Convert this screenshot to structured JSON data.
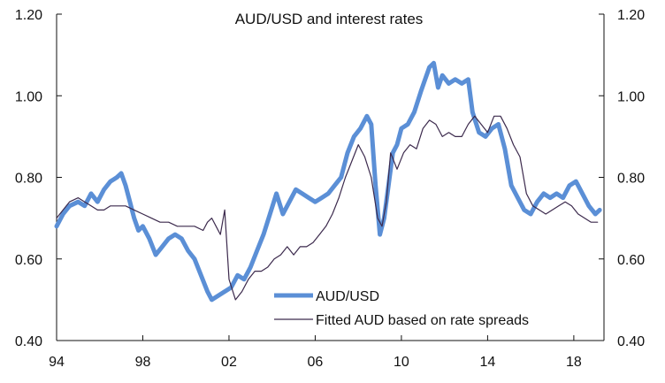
{
  "chart_data": {
    "type": "line",
    "title": "AUD/USD and interest rates",
    "xlabel": "",
    "ylabel": "",
    "xlim": [
      1994,
      2019.4
    ],
    "ylim": [
      0.4,
      1.2
    ],
    "x_ticks": [
      1994,
      1998,
      2002,
      2006,
      2010,
      2014,
      2018
    ],
    "x_tick_labels": [
      "94",
      "98",
      "02",
      "06",
      "10",
      "14",
      "18"
    ],
    "y_ticks": [
      0.4,
      0.6,
      0.8,
      1.0,
      1.2
    ],
    "y_tick_labels": [
      "0.40",
      "0.60",
      "0.80",
      "1.00",
      "1.20"
    ],
    "grid": false,
    "legend_position": "bottom-right",
    "colors": {
      "aud": "#5b8fd6",
      "fitted": "#3c2a4d",
      "axis": "#111111"
    },
    "series": [
      {
        "name": "AUD/USD",
        "x": [
          1994.0,
          1994.3,
          1994.6,
          1995.0,
          1995.3,
          1995.6,
          1995.9,
          1996.2,
          1996.5,
          1996.8,
          1997.0,
          1997.2,
          1997.4,
          1997.6,
          1997.8,
          1998.0,
          1998.3,
          1998.6,
          1998.9,
          1999.2,
          1999.5,
          1999.8,
          2000.1,
          2000.4,
          2000.7,
          2001.0,
          2001.2,
          2001.5,
          2001.8,
          2002.1,
          2002.4,
          2002.7,
          2003.0,
          2003.3,
          2003.6,
          2003.9,
          2004.2,
          2004.5,
          2004.8,
          2005.1,
          2005.4,
          2005.7,
          2006.0,
          2006.3,
          2006.6,
          2006.9,
          2007.2,
          2007.5,
          2007.8,
          2008.1,
          2008.4,
          2008.6,
          2008.8,
          2009.0,
          2009.2,
          2009.4,
          2009.6,
          2009.8,
          2010.0,
          2010.3,
          2010.6,
          2010.9,
          2011.1,
          2011.3,
          2011.5,
          2011.7,
          2011.9,
          2012.2,
          2012.5,
          2012.8,
          2013.1,
          2013.3,
          2013.6,
          2013.9,
          2014.2,
          2014.5,
          2014.8,
          2015.1,
          2015.4,
          2015.7,
          2016.0,
          2016.3,
          2016.6,
          2016.9,
          2017.2,
          2017.5,
          2017.8,
          2018.1,
          2018.4,
          2018.7,
          2019.0,
          2019.2
        ],
        "values": [
          0.68,
          0.71,
          0.73,
          0.74,
          0.73,
          0.76,
          0.74,
          0.77,
          0.79,
          0.8,
          0.81,
          0.78,
          0.74,
          0.7,
          0.67,
          0.68,
          0.65,
          0.61,
          0.63,
          0.65,
          0.66,
          0.65,
          0.62,
          0.6,
          0.56,
          0.52,
          0.5,
          0.51,
          0.52,
          0.53,
          0.56,
          0.55,
          0.58,
          0.62,
          0.66,
          0.71,
          0.76,
          0.71,
          0.74,
          0.77,
          0.76,
          0.75,
          0.74,
          0.75,
          0.76,
          0.78,
          0.8,
          0.86,
          0.9,
          0.92,
          0.95,
          0.93,
          0.78,
          0.66,
          0.7,
          0.78,
          0.86,
          0.88,
          0.92,
          0.93,
          0.96,
          1.01,
          1.04,
          1.07,
          1.08,
          1.02,
          1.05,
          1.03,
          1.04,
          1.03,
          1.04,
          0.96,
          0.91,
          0.9,
          0.92,
          0.93,
          0.87,
          0.78,
          0.75,
          0.72,
          0.71,
          0.74,
          0.76,
          0.75,
          0.76,
          0.75,
          0.78,
          0.79,
          0.76,
          0.73,
          0.71,
          0.72
        ]
      },
      {
        "name": "Fitted AUD based on rate spreads",
        "x": [
          1994.0,
          1994.3,
          1994.6,
          1995.0,
          1995.3,
          1995.6,
          1995.9,
          1996.2,
          1996.5,
          1996.8,
          1997.2,
          1997.6,
          1998.0,
          1998.4,
          1998.8,
          1999.2,
          1999.6,
          2000.0,
          2000.4,
          2000.8,
          2001.0,
          2001.2,
          2001.4,
          2001.6,
          2001.8,
          2002.0,
          2002.3,
          2002.6,
          2002.9,
          2003.2,
          2003.5,
          2003.8,
          2004.1,
          2004.4,
          2004.7,
          2005.0,
          2005.3,
          2005.6,
          2005.9,
          2006.2,
          2006.5,
          2006.8,
          2007.1,
          2007.4,
          2007.7,
          2008.0,
          2008.3,
          2008.6,
          2008.9,
          2009.1,
          2009.3,
          2009.5,
          2009.8,
          2010.1,
          2010.4,
          2010.7,
          2011.0,
          2011.3,
          2011.6,
          2011.9,
          2012.2,
          2012.5,
          2012.8,
          2013.1,
          2013.4,
          2013.7,
          2014.0,
          2014.3,
          2014.6,
          2014.9,
          2015.2,
          2015.5,
          2015.8,
          2016.1,
          2016.4,
          2016.7,
          2017.0,
          2017.3,
          2017.6,
          2017.9,
          2018.2,
          2018.5,
          2018.8,
          2019.1
        ],
        "values": [
          0.7,
          0.72,
          0.74,
          0.75,
          0.74,
          0.73,
          0.72,
          0.72,
          0.73,
          0.73,
          0.73,
          0.72,
          0.71,
          0.7,
          0.69,
          0.69,
          0.68,
          0.68,
          0.68,
          0.67,
          0.69,
          0.7,
          0.68,
          0.66,
          0.72,
          0.55,
          0.5,
          0.52,
          0.55,
          0.57,
          0.57,
          0.58,
          0.6,
          0.61,
          0.63,
          0.61,
          0.63,
          0.63,
          0.64,
          0.66,
          0.68,
          0.71,
          0.75,
          0.8,
          0.84,
          0.88,
          0.85,
          0.8,
          0.7,
          0.68,
          0.74,
          0.86,
          0.82,
          0.86,
          0.88,
          0.87,
          0.92,
          0.94,
          0.93,
          0.9,
          0.91,
          0.9,
          0.9,
          0.93,
          0.95,
          0.93,
          0.91,
          0.95,
          0.95,
          0.92,
          0.88,
          0.85,
          0.76,
          0.73,
          0.72,
          0.71,
          0.72,
          0.73,
          0.74,
          0.73,
          0.71,
          0.7,
          0.69,
          0.69
        ]
      }
    ]
  }
}
